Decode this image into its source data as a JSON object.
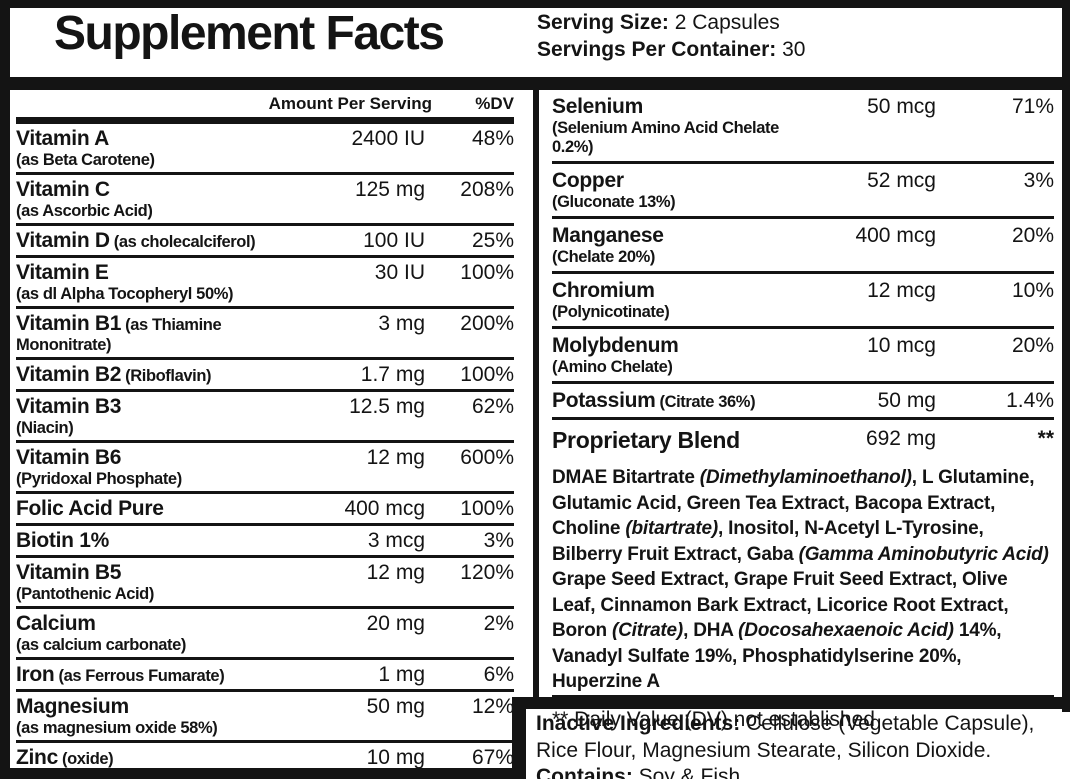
{
  "colors": {
    "ink": "#141414",
    "background": "#ffffff"
  },
  "title": "Supplement Facts",
  "serving": {
    "size_label": "Serving Size:",
    "size_value": " 2 Capsules",
    "per_container_label": "Servings Per Container:",
    "per_container_value": " 30"
  },
  "columns": {
    "amount_header": "Amount Per Serving",
    "dv_header": "%DV"
  },
  "left_rows": [
    {
      "name": "Vitamin A",
      "detail": "(as Beta Carotene)",
      "inline": false,
      "amount": "2400 IU",
      "dv": "48%"
    },
    {
      "name": "Vitamin C",
      "detail": "(as Ascorbic Acid)",
      "inline": false,
      "amount": "125 mg",
      "dv": "208%"
    },
    {
      "name": "Vitamin D",
      "detail": "(as cholecalciferol)",
      "inline": true,
      "amount": "100 IU",
      "dv": "25%"
    },
    {
      "name": "Vitamin E",
      "detail": "(as dl Alpha Tocopheryl 50%)",
      "inline": false,
      "amount": "30 IU",
      "dv": "100%"
    },
    {
      "name": "Vitamin B1",
      "detail": "(as Thiamine Mononitrate)",
      "inline": true,
      "amount": "3 mg",
      "dv": "200%"
    },
    {
      "name": "Vitamin B2",
      "detail": "(Riboflavin)",
      "inline": true,
      "amount": "1.7 mg",
      "dv": "100%"
    },
    {
      "name": "Vitamin B3",
      "detail": "(Niacin)",
      "inline": false,
      "amount": "12.5 mg",
      "dv": "62%"
    },
    {
      "name": "Vitamin B6",
      "detail": "(Pyridoxal Phosphate)",
      "inline": false,
      "amount": "12 mg",
      "dv": "600%"
    },
    {
      "name": "Folic Acid Pure",
      "detail": "",
      "inline": true,
      "amount": "400 mcg",
      "dv": "100%"
    },
    {
      "name": "Biotin 1%",
      "detail": "",
      "inline": true,
      "amount": "3 mcg",
      "dv": "3%"
    },
    {
      "name": "Vitamin B5",
      "detail": "(Pantothenic Acid)",
      "inline": false,
      "amount": "12 mg",
      "dv": "120%"
    },
    {
      "name": "Calcium",
      "detail": "(as calcium carbonate)",
      "inline": false,
      "amount": "20 mg",
      "dv": "2%"
    },
    {
      "name": "Iron",
      "detail": "(as Ferrous Fumarate)",
      "inline": true,
      "amount": "1 mg",
      "dv": "6%"
    },
    {
      "name": "Magnesium",
      "detail": "(as magnesium oxide 58%)",
      "inline": false,
      "amount": "50 mg",
      "dv": "12%"
    },
    {
      "name": "Zinc",
      "detail": "(oxide)",
      "inline": true,
      "amount": "10 mg",
      "dv": "67%"
    }
  ],
  "right_rows": [
    {
      "name": "Selenium",
      "detail": "(Selenium Amino Acid Chelate 0.2%)",
      "inline": false,
      "amount": "50 mcg",
      "dv": "71%"
    },
    {
      "name": "Copper",
      "detail": "(Gluconate 13%)",
      "inline": false,
      "amount": "52 mcg",
      "dv": "3%"
    },
    {
      "name": "Manganese",
      "detail": "(Chelate 20%)",
      "inline": false,
      "amount": "400 mcg",
      "dv": "20%"
    },
    {
      "name": "Chromium",
      "detail": "(Polynicotinate)",
      "inline": false,
      "amount": "12 mcg",
      "dv": "10%"
    },
    {
      "name": "Molybdenum",
      "detail": "(Amino Chelate)",
      "inline": false,
      "amount": "10 mcg",
      "dv": "20%"
    },
    {
      "name": "Potassium",
      "detail": "(Citrate 36%)",
      "inline": true,
      "amount": "50 mg",
      "dv": "1.4%"
    }
  ],
  "proprietary_blend": {
    "name": "Proprietary Blend",
    "amount": "692 mg",
    "dv": "**",
    "description": [
      {
        "text": "DMAE Bitartrate ",
        "italic": false
      },
      {
        "text": "(Dimethylaminoethanol)",
        "italic": true
      },
      {
        "text": ", L Glutamine, Glutamic Acid, Green Tea Extract, Bacopa Extract, Choline ",
        "italic": false
      },
      {
        "text": "(bitartrate)",
        "italic": true
      },
      {
        "text": ", Inositol, N-Acetyl L-Tyrosine, Bilberry Fruit Extract, Gaba ",
        "italic": false
      },
      {
        "text": "(Gamma Aminobutyric Acid)",
        "italic": true
      },
      {
        "text": " Grape Seed Extract, Grape Fruit Seed Extract, Olive Leaf, Cinnamon Bark Extract, Licorice Root Extract, Boron ",
        "italic": false
      },
      {
        "text": "(Citrate)",
        "italic": true
      },
      {
        "text": ", DHA ",
        "italic": false
      },
      {
        "text": "(Docosahexaenoic Acid)",
        "italic": true
      },
      {
        "text": " 14%, Vanadyl Sulfate 19%, Phosphatidylserine 20%, Huperzine A",
        "italic": false
      }
    ]
  },
  "footnote": "** Daily Value (DV) not established",
  "inactive": {
    "label": "Inactive Ingredients:",
    "text": " Cellulose (Vegetable Capsule), Rice Flour, Magnesium Stearate, Silicon Dioxide.",
    "contains_label": "Contains:",
    "contains_text": " Soy & Fish"
  }
}
